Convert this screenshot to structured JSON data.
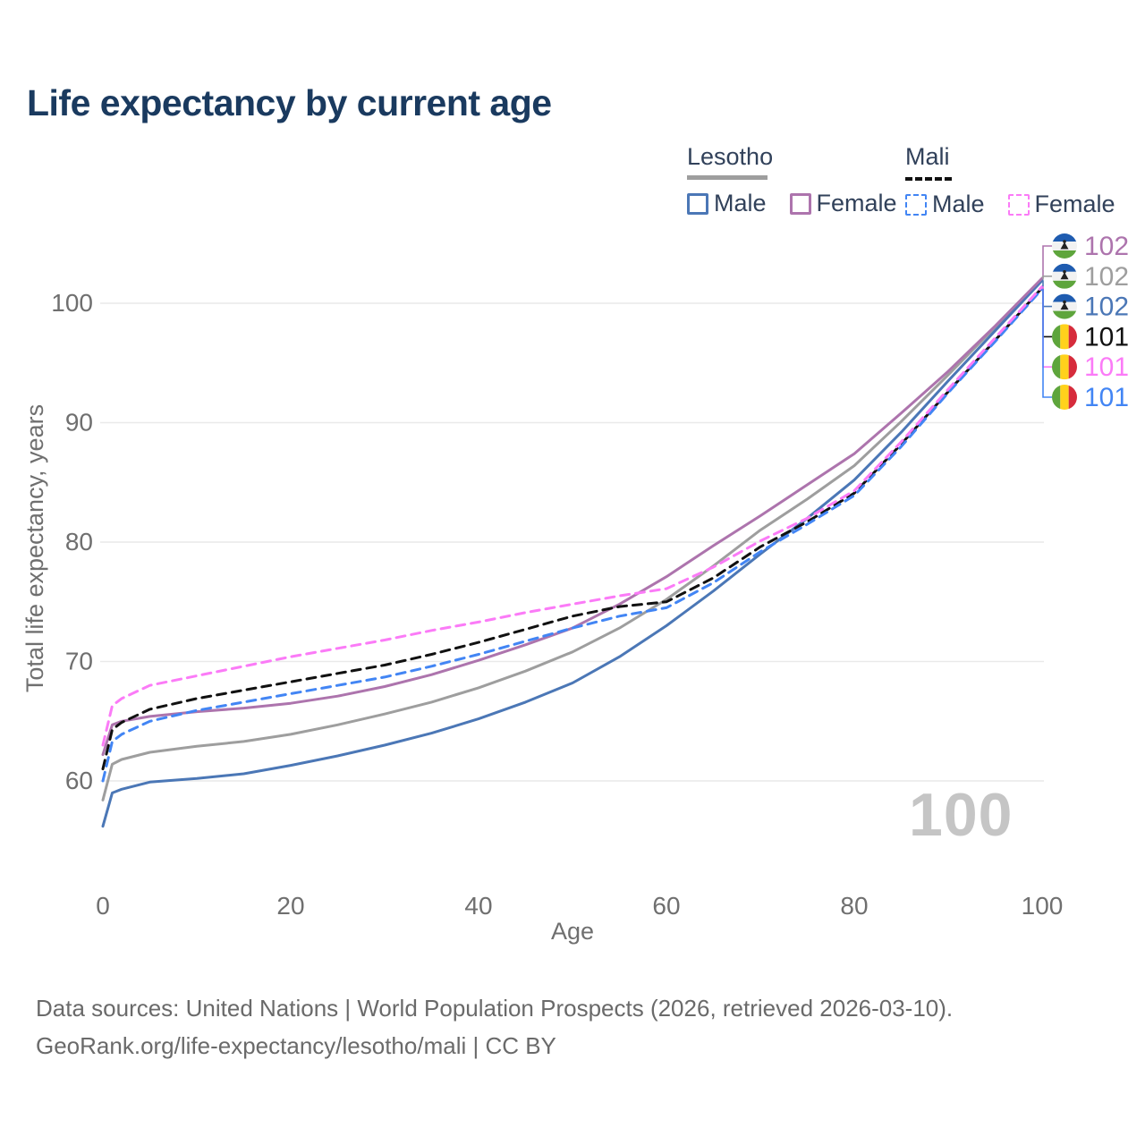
{
  "title": "Life expectancy by current age",
  "legend": {
    "groups": [
      {
        "key": "lesotho",
        "label": "Lesotho",
        "line_style": "solid",
        "underline_color": "#9e9e9e",
        "items": [
          {
            "key": "lesotho-male",
            "label": "Male",
            "color": "#4b77b6"
          },
          {
            "key": "lesotho-female",
            "label": "Female",
            "color": "#ad74ad"
          }
        ]
      },
      {
        "key": "mali",
        "label": "Mali",
        "line_style": "dashed",
        "underline_color": "#111111",
        "items": [
          {
            "key": "mali-male",
            "label": "Male",
            "color": "#4285f4"
          },
          {
            "key": "mali-female",
            "label": "Female",
            "color": "#fb7bf7"
          }
        ]
      }
    ]
  },
  "watermark": "100",
  "footer": {
    "line1": "Data sources: United Nations | World Population Prospects (2026, retrieved 2026-03-10).",
    "line2": "GeoRank.org/life-expectancy/lesotho/mali | CC BY"
  },
  "chart_data": {
    "type": "line",
    "title": "Life expectancy by current age",
    "xlabel": "Age",
    "ylabel": "Total life expectancy, years",
    "xlim": [
      0,
      100
    ],
    "ylim": [
      55,
      104
    ],
    "xticks": [
      0,
      20,
      40,
      60,
      80,
      100
    ],
    "yticks": [
      60,
      70,
      80,
      90,
      100
    ],
    "grid": true,
    "grid_color": "#e9e9e9",
    "axis_color": "#6f6f6f",
    "ages": [
      0,
      1,
      2,
      5,
      10,
      15,
      20,
      25,
      30,
      35,
      40,
      45,
      50,
      55,
      60,
      65,
      70,
      75,
      80,
      85,
      90,
      95,
      100
    ],
    "series": [
      {
        "key": "lesotho-all",
        "name": "Lesotho (both sexes)",
        "country": "Lesotho",
        "sex": "All",
        "color": "#9e9e9e",
        "dash": false,
        "values": [
          58.4,
          61.4,
          61.8,
          62.4,
          62.9,
          63.3,
          63.9,
          64.7,
          65.6,
          66.6,
          67.8,
          69.2,
          70.8,
          72.8,
          75.2,
          78.0,
          81.0,
          83.6,
          86.4,
          90.1,
          94.0,
          98.0,
          102.0
        ]
      },
      {
        "key": "lesotho-male",
        "name": "Lesotho Male",
        "country": "Lesotho",
        "sex": "Male",
        "color": "#4b77b6",
        "dash": false,
        "values": [
          56.2,
          59.0,
          59.3,
          59.9,
          60.2,
          60.6,
          61.3,
          62.1,
          63.0,
          64.0,
          65.2,
          66.6,
          68.2,
          70.4,
          73.0,
          75.9,
          79.0,
          82.0,
          85.2,
          89.2,
          93.5,
          97.7,
          101.9
        ]
      },
      {
        "key": "lesotho-female",
        "name": "Lesotho Female",
        "country": "Lesotho",
        "sex": "Female",
        "color": "#ad74ad",
        "dash": false,
        "values": [
          62.2,
          64.7,
          65.0,
          65.4,
          65.8,
          66.1,
          66.5,
          67.1,
          67.9,
          68.9,
          70.1,
          71.4,
          72.8,
          74.8,
          77.1,
          79.7,
          82.2,
          84.8,
          87.4,
          90.8,
          94.3,
          98.1,
          102.1
        ]
      },
      {
        "key": "mali-all",
        "name": "Mali (both sexes)",
        "country": "Mali",
        "sex": "All",
        "color": "#111111",
        "dash": true,
        "values": [
          61.0,
          64.3,
          64.9,
          66.0,
          66.9,
          67.6,
          68.3,
          69.0,
          69.7,
          70.6,
          71.6,
          72.7,
          73.8,
          74.6,
          75.0,
          77.0,
          79.6,
          81.7,
          84.1,
          88.2,
          92.6,
          96.9,
          101.3
        ]
      },
      {
        "key": "mali-male",
        "name": "Mali Male",
        "country": "Mali",
        "sex": "Male",
        "color": "#4285f4",
        "dash": true,
        "values": [
          60.0,
          63.3,
          63.9,
          65.0,
          65.9,
          66.6,
          67.3,
          68.0,
          68.7,
          69.6,
          70.6,
          71.7,
          72.8,
          73.8,
          74.5,
          76.6,
          79.2,
          81.5,
          83.9,
          88.0,
          92.5,
          96.8,
          101.2
        ]
      },
      {
        "key": "mali-female",
        "name": "Mali Female",
        "country": "Mali",
        "sex": "Female",
        "color": "#fb7bf7",
        "dash": true,
        "values": [
          63.0,
          66.3,
          66.9,
          68.0,
          68.8,
          69.6,
          70.4,
          71.1,
          71.8,
          72.6,
          73.3,
          74.1,
          74.8,
          75.5,
          76.1,
          77.9,
          80.1,
          82.0,
          84.3,
          88.4,
          92.8,
          97.1,
          101.4
        ]
      }
    ],
    "end_labels": [
      {
        "label": "102",
        "series_key": "lesotho-female",
        "color": "#ad74ad",
        "flag": "lesotho"
      },
      {
        "label": "102",
        "series_key": "lesotho-all",
        "color": "#9e9e9e",
        "flag": "lesotho"
      },
      {
        "label": "102",
        "series_key": "lesotho-male",
        "color": "#4b77b6",
        "flag": "lesotho"
      },
      {
        "label": "101",
        "series_key": "mali-all",
        "color": "#111111",
        "flag": "mali"
      },
      {
        "label": "101",
        "series_key": "mali-female",
        "color": "#fb7bf7",
        "flag": "mali"
      },
      {
        "label": "101",
        "series_key": "mali-male",
        "color": "#4285f4",
        "flag": "mali"
      }
    ],
    "flags": {
      "lesotho": {
        "orientation": "horizontal",
        "colors": [
          "#1f5cb0",
          "#f2f2f2",
          "#5ea53c"
        ],
        "emblem_color": "#222222"
      },
      "mali": {
        "orientation": "vertical",
        "colors": [
          "#5ea53c",
          "#ffd21c",
          "#d62c3c"
        ]
      }
    },
    "legend_position": "top-right"
  }
}
